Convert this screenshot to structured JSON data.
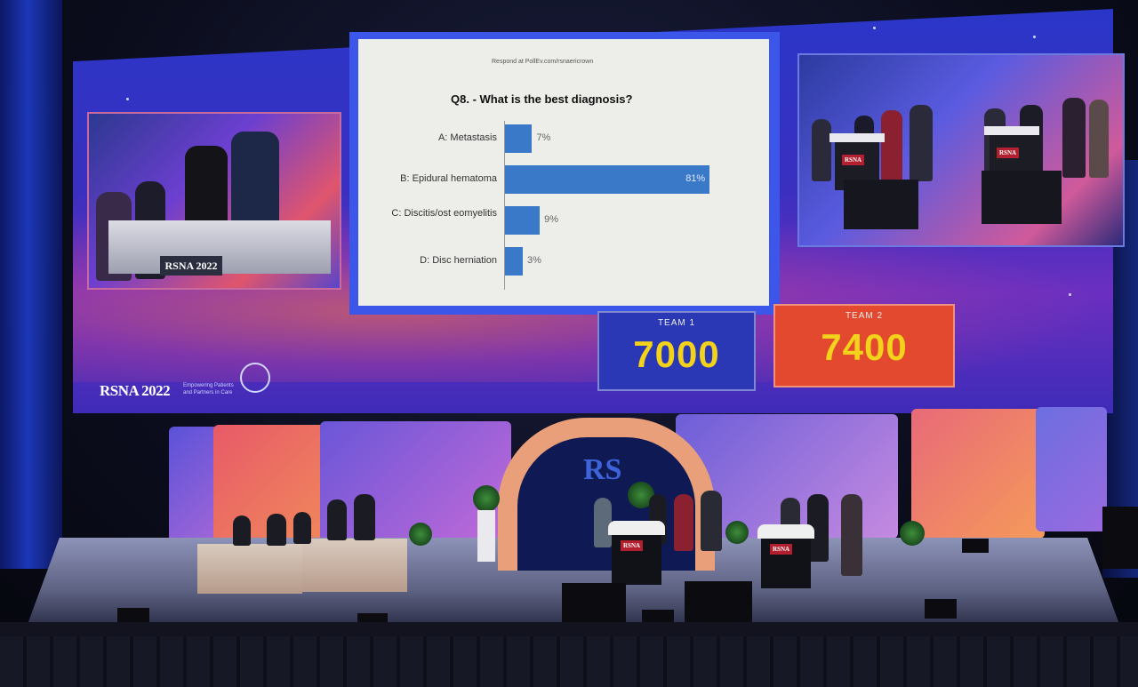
{
  "poll": {
    "respond_text": "Respond at PollEv.com/rsnaericrown",
    "question": "Q8. - What is the best diagnosis?",
    "options": [
      {
        "label": "A: Metastasis",
        "pct_text": "7%",
        "value": 7
      },
      {
        "label": "B: Epidural hematoma",
        "pct_text": "81%",
        "value": 81
      },
      {
        "label": "C: Discitis/ost eomyelitis",
        "pct_text": "9%",
        "value": 9
      },
      {
        "label": "D: Disc herniation",
        "pct_text": "3%",
        "value": 3
      }
    ]
  },
  "teams": [
    {
      "label": "TEAM 1",
      "score": "7000",
      "color": "#2a38b5"
    },
    {
      "label": "TEAM 2",
      "score": "7400",
      "color": "#e3492e"
    }
  ],
  "branding": {
    "screen_logo": "RSNA 2022",
    "tagline": "Empowering Patients and Partners in Care",
    "podium_logo_left": "RSNA 2022",
    "podium_badge": "RSNA",
    "arch_logo": "RS"
  },
  "colors": {
    "poll_bar": "#3a78c8",
    "screen_blue": "#2a36c8",
    "score_yellow": "#f2d21a"
  }
}
